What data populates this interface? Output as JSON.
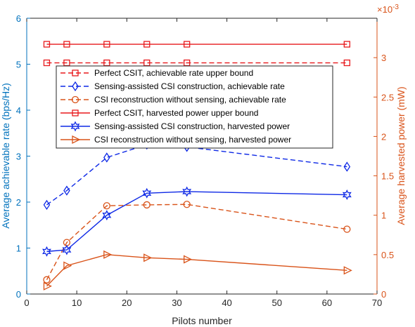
{
  "chart_data": {
    "type": "line",
    "xlabel": "Pilots number",
    "ylabel_left": "Average achievable rate (bps/Hz)",
    "ylabel_right": "Average harvested power (mW)",
    "right_exponent_label": "×10",
    "right_exponent_power": "-3",
    "xlim": [
      0,
      70
    ],
    "ylim_left": [
      0,
      6
    ],
    "ylim_right": [
      0,
      3.5
    ],
    "grid": false,
    "legend_position": "top-center",
    "x_ticks": [
      "0",
      "10",
      "20",
      "30",
      "40",
      "50",
      "60",
      "70"
    ],
    "left_ticks": [
      "0",
      "1",
      "2",
      "3",
      "4",
      "5",
      "6"
    ],
    "right_ticks": [
      "0",
      "0.5",
      "1",
      "1.5",
      "2",
      "2.5",
      "3"
    ],
    "left_axis_color": "#0072BD",
    "right_axis_color": "#D95319",
    "series": [
      {
        "name": "Perfect CSIT, achievable rate upper bound",
        "axis": "left",
        "color": "#E8191C",
        "dash": "dashed",
        "marker": "square",
        "x": [
          4,
          8,
          16,
          24,
          32,
          64
        ],
        "y": [
          5.03,
          5.03,
          5.03,
          5.03,
          5.03,
          5.03
        ]
      },
      {
        "name": "Sensing-assisted CSI construction, achievable rate",
        "axis": "left",
        "color": "#0D28E6",
        "dash": "dashed",
        "marker": "diamond",
        "x": [
          4,
          8,
          16,
          24,
          32,
          64
        ],
        "y": [
          1.94,
          2.25,
          2.97,
          3.25,
          3.2,
          2.77
        ]
      },
      {
        "name": "CSI reconstruction without sensing, achievable rate",
        "axis": "left",
        "color": "#D95319",
        "dash": "dashed",
        "marker": "circle",
        "x": [
          4,
          8,
          16,
          24,
          32,
          64
        ],
        "y": [
          0.31,
          1.12,
          1.92,
          1.94,
          1.95,
          1.41
        ]
      },
      {
        "name": "Perfect CSIT,  harvested power upper bound",
        "axis": "right",
        "color": "#E8191C",
        "dash": "solid",
        "marker": "square",
        "x": [
          4,
          8,
          16,
          24,
          32,
          64
        ],
        "y": [
          3.17,
          3.17,
          3.17,
          3.17,
          3.17,
          3.17
        ]
      },
      {
        "name": "Sensing-assisted CSI construction,  harvested power",
        "axis": "right",
        "color": "#0D28E6",
        "dash": "solid",
        "marker": "hexagram",
        "x": [
          4,
          8,
          16,
          24,
          32,
          64
        ],
        "y": [
          0.54,
          0.56,
          1.0,
          1.28,
          1.3,
          1.26
        ]
      },
      {
        "name": "CSI reconstruction without sensing,  harvested power",
        "axis": "right",
        "color": "#D95319",
        "dash": "solid",
        "marker": "triangle-right",
        "x": [
          4,
          8,
          16,
          24,
          32,
          64
        ],
        "y": [
          0.1,
          0.36,
          0.5,
          0.46,
          0.44,
          0.3
        ]
      }
    ]
  }
}
